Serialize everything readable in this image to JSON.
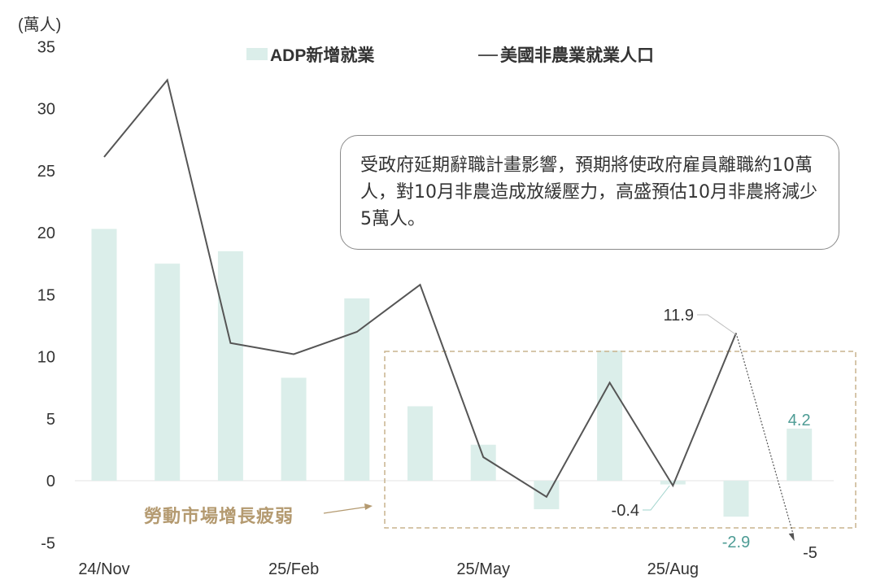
{
  "unit_label": "(萬人)",
  "legend": {
    "adp": "ADP新增就業",
    "nfp": "美國非農業就業人口"
  },
  "annotation_box": "受政府延期辭職計畫影響，預期將使政府雇員離職約10萬人，對10月非農造成放緩壓力，高盛預估10月非農將減少5萬人。",
  "weakness_label": "勞動市場增長疲弱",
  "colors": {
    "adp_bar": "#dbeeea",
    "nfp_line": "#555555",
    "highlight_box": "#c9b48e",
    "teal_label": "#4e9c95",
    "dark_label": "#333333"
  },
  "chart_data": {
    "type": "bar",
    "categories": [
      "24/Nov",
      "24/Dec",
      "25/Jan",
      "25/Feb",
      "25/Mar",
      "25/Apr",
      "25/May",
      "25/Jun",
      "25/Jul",
      "25/Aug",
      "25/Sep",
      "25/Oct"
    ],
    "x_tick_labels": [
      "24/Nov",
      "25/Feb",
      "25/May",
      "25/Aug"
    ],
    "series": [
      {
        "name": "ADP新增就業",
        "type": "bar",
        "values": [
          20.3,
          17.5,
          18.5,
          8.3,
          14.7,
          6.0,
          2.9,
          -2.3,
          10.5,
          -0.3,
          -2.9,
          4.2
        ]
      },
      {
        "name": "美國非農業就業人口",
        "type": "line",
        "values": [
          26.1,
          32.3,
          11.1,
          10.2,
          12.0,
          15.8,
          1.9,
          -1.3,
          7.9,
          -0.4,
          11.9,
          -5
        ]
      }
    ],
    "data_labels": [
      {
        "text": "11.9",
        "series": "美國非農業就業人口",
        "category": "25/Sep"
      },
      {
        "text": "-0.4",
        "series": "美國非農業就業人口",
        "category": "25/Aug"
      },
      {
        "text": "-2.9",
        "series": "ADP新增就業",
        "category": "25/Sep"
      },
      {
        "text": "4.2",
        "series": "ADP新增就業",
        "category": "25/Oct"
      },
      {
        "text": "-5",
        "series": "美國非農業就業人口",
        "category": "25/Oct"
      }
    ],
    "y_ticks": [
      35,
      30,
      25,
      20,
      15,
      10,
      5,
      0,
      -5
    ],
    "ylim": [
      -5,
      35
    ],
    "grid": false,
    "legend_position": "top",
    "highlight_range": [
      "25/Apr",
      "25/Oct"
    ]
  }
}
